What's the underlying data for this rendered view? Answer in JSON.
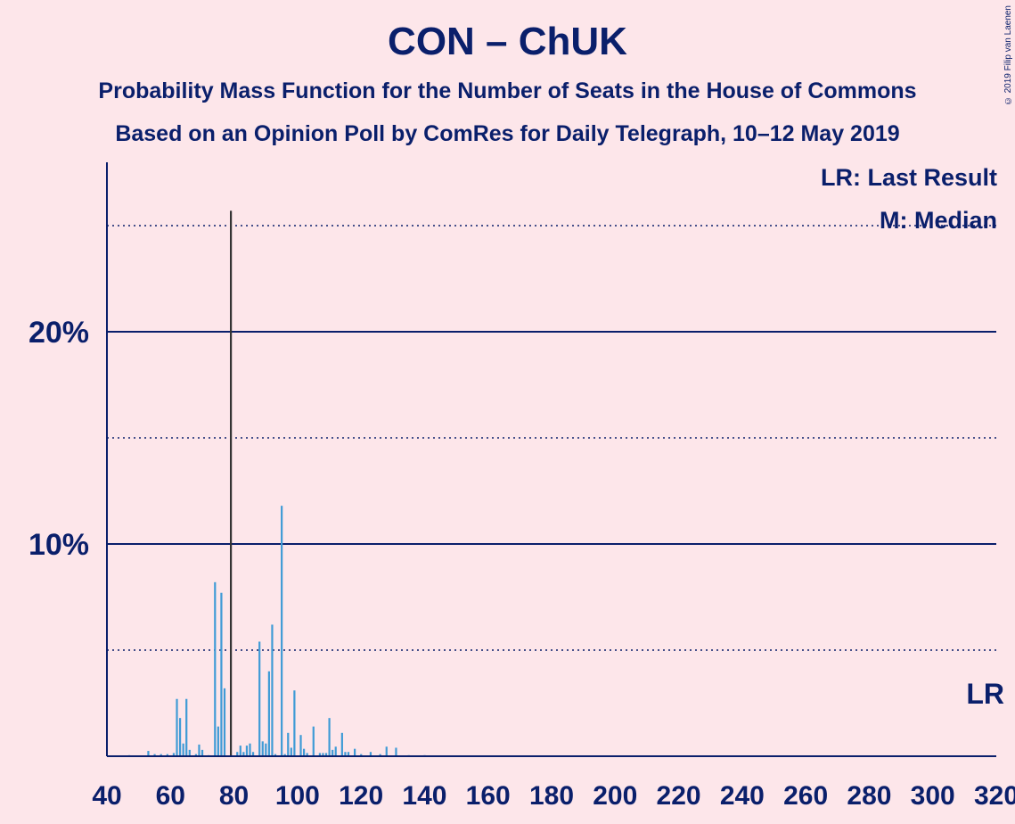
{
  "header": {
    "title": "CON – ChUK",
    "subtitle1": "Probability Mass Function for the Number of Seats in the House of Commons",
    "subtitle2": "Based on an Opinion Poll by ComRes for Daily Telegraph, 10–12 May 2019",
    "credit": "© 2019 Filip van Laenen"
  },
  "legend": {
    "last_result": "LR: Last Result",
    "median": "M: Median",
    "lr_marker": "LR"
  },
  "colors": {
    "background": "#fde6ea",
    "text": "#0a1f6b",
    "bar_light": "#3f9bd6",
    "bar_dark": "#333333"
  },
  "chart_data": {
    "type": "bar",
    "xlim": [
      40,
      320
    ],
    "ylim": [
      0,
      28
    ],
    "yticks": [
      {
        "value": 10,
        "label": "10%"
      },
      {
        "value": 20,
        "label": "20%"
      }
    ],
    "xticks": [
      40,
      60,
      80,
      100,
      120,
      140,
      160,
      180,
      200,
      220,
      240,
      260,
      280,
      300,
      320
    ],
    "dotted_gridlines": [
      5,
      15,
      25
    ],
    "solid_gridlines": [
      10,
      20
    ],
    "median_seat": 79,
    "last_result_seat": 318,
    "bars": [
      {
        "x": 47,
        "y": 0.05
      },
      {
        "x": 53,
        "y": 0.25
      },
      {
        "x": 55,
        "y": 0.1
      },
      {
        "x": 57,
        "y": 0.1
      },
      {
        "x": 59,
        "y": 0.1
      },
      {
        "x": 61,
        "y": 0.15
      },
      {
        "x": 62,
        "y": 2.7
      },
      {
        "x": 63,
        "y": 1.8
      },
      {
        "x": 64,
        "y": 0.6
      },
      {
        "x": 65,
        "y": 2.7
      },
      {
        "x": 66,
        "y": 0.3
      },
      {
        "x": 68,
        "y": 0.1
      },
      {
        "x": 69,
        "y": 0.55
      },
      {
        "x": 70,
        "y": 0.3
      },
      {
        "x": 72,
        "y": 0.05
      },
      {
        "x": 74,
        "y": 8.2
      },
      {
        "x": 75,
        "y": 1.4
      },
      {
        "x": 76,
        "y": 7.7
      },
      {
        "x": 77,
        "y": 3.2
      },
      {
        "x": 79,
        "y": 25.7
      },
      {
        "x": 81,
        "y": 0.2
      },
      {
        "x": 82,
        "y": 0.5
      },
      {
        "x": 83,
        "y": 0.2
      },
      {
        "x": 84,
        "y": 0.5
      },
      {
        "x": 85,
        "y": 0.6
      },
      {
        "x": 86,
        "y": 0.2
      },
      {
        "x": 88,
        "y": 5.4
      },
      {
        "x": 89,
        "y": 0.7
      },
      {
        "x": 90,
        "y": 0.6
      },
      {
        "x": 91,
        "y": 4.0
      },
      {
        "x": 92,
        "y": 6.2
      },
      {
        "x": 93,
        "y": 0.1
      },
      {
        "x": 95,
        "y": 11.8
      },
      {
        "x": 96,
        "y": 0.1
      },
      {
        "x": 97,
        "y": 1.1
      },
      {
        "x": 98,
        "y": 0.4
      },
      {
        "x": 99,
        "y": 3.1
      },
      {
        "x": 101,
        "y": 1.0
      },
      {
        "x": 102,
        "y": 0.35
      },
      {
        "x": 103,
        "y": 0.15
      },
      {
        "x": 105,
        "y": 1.4
      },
      {
        "x": 107,
        "y": 0.15
      },
      {
        "x": 108,
        "y": 0.15
      },
      {
        "x": 109,
        "y": 0.15
      },
      {
        "x": 110,
        "y": 1.8
      },
      {
        "x": 111,
        "y": 0.3
      },
      {
        "x": 112,
        "y": 0.45
      },
      {
        "x": 114,
        "y": 1.1
      },
      {
        "x": 115,
        "y": 0.2
      },
      {
        "x": 116,
        "y": 0.2
      },
      {
        "x": 118,
        "y": 0.35
      },
      {
        "x": 120,
        "y": 0.1
      },
      {
        "x": 123,
        "y": 0.2
      },
      {
        "x": 126,
        "y": 0.1
      },
      {
        "x": 128,
        "y": 0.45
      },
      {
        "x": 131,
        "y": 0.4
      },
      {
        "x": 135,
        "y": 0.05
      },
      {
        "x": 140,
        "y": 0.05
      }
    ]
  }
}
